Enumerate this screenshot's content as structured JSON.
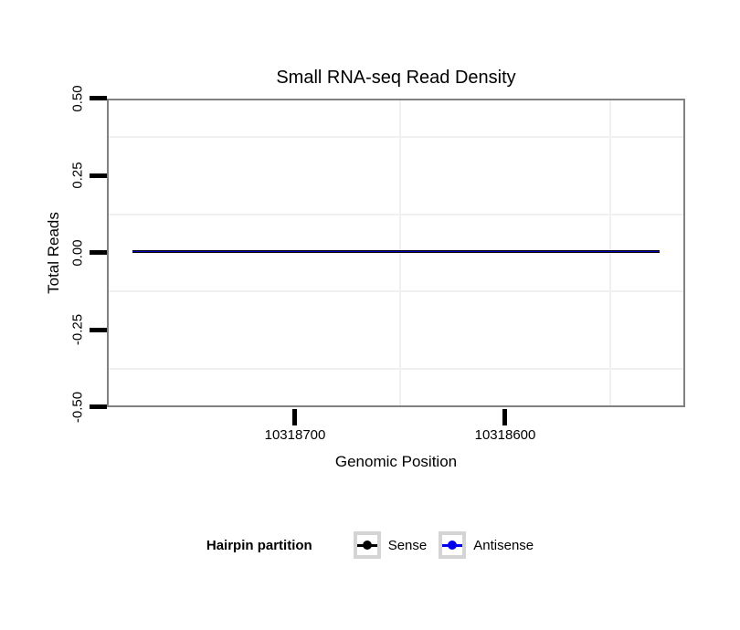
{
  "title": "Small RNA-seq Read Density",
  "y_axis": {
    "label": "Total Reads",
    "tick_labels": [
      "0.50",
      "0.25",
      "0.00",
      "-0.25",
      "-0.50"
    ]
  },
  "x_axis": {
    "label": "Genomic Position",
    "tick_labels": [
      "10318700",
      "10318600"
    ]
  },
  "legend": {
    "title": "Hairpin partition",
    "items": [
      {
        "label": "Sense",
        "color": "#000000"
      },
      {
        "label": "Antisense",
        "color": "#0000ee"
      }
    ]
  },
  "colors": {
    "panel_border": "#818181",
    "minor_gridline": "#f0f0f0",
    "tick": "#000000",
    "legend_key_border": "#d4d4d4",
    "background": "#ffffff"
  },
  "chart_data": {
    "type": "line",
    "title": "Small RNA-seq Read Density",
    "xlabel": "Genomic Position",
    "ylabel": "Total Reads",
    "x_reversed": true,
    "xlim": [
      10318790,
      10318514
    ],
    "ylim": [
      -0.5,
      0.5
    ],
    "x_ticks": [
      10318700,
      10318600
    ],
    "y_ticks": [
      0.5,
      0.25,
      0.0,
      -0.25,
      -0.5
    ],
    "x_minor_gridlines": [
      10318650,
      10318550
    ],
    "y_minor_gridlines": [
      0.375,
      0.125,
      -0.125,
      -0.375
    ],
    "grid": "minor-only",
    "legend_title": "Hairpin partition",
    "legend_position": "bottom",
    "series": [
      {
        "name": "Sense",
        "color": "#000000",
        "x": [
          10318777,
          10318527
        ],
        "y": [
          0,
          0
        ]
      },
      {
        "name": "Antisense",
        "color": "#0000ee",
        "x": [
          10318777,
          10318527
        ],
        "y": [
          0,
          0
        ]
      }
    ],
    "note": "Both series are constant at 0 across the plotted range; the blue Antisense line overlaps the black Sense line"
  }
}
